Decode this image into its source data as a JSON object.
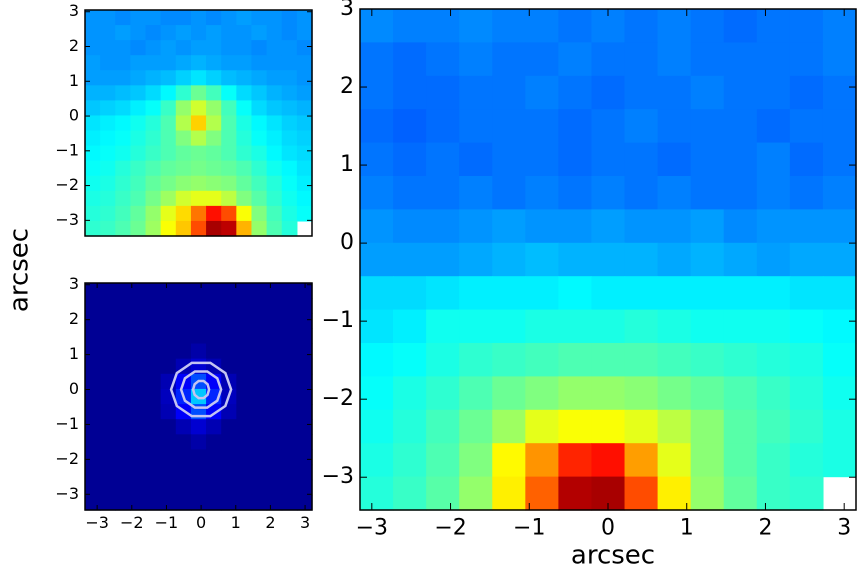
{
  "chart_data": [
    {
      "type": "heatmap",
      "colormap": "jet",
      "ylabel": "arcsec",
      "xlim": [
        -3.35,
        3.2
      ],
      "ylim": [
        -3.45,
        3.05
      ],
      "yticks": [
        {
          "value": -3,
          "label": "−3"
        },
        {
          "value": -2,
          "label": "−2"
        },
        {
          "value": -1,
          "label": "−1"
        },
        0,
        1,
        2,
        3
      ],
      "z": [
        [
          0.27,
          0.27,
          0.26,
          0.27,
          0.27,
          0.26,
          0.26,
          0.27,
          0.26,
          0.27,
          0.28,
          0.27,
          0.27,
          0.26,
          0.27
        ],
        [
          0.27,
          0.27,
          0.28,
          0.27,
          0.26,
          0.27,
          0.28,
          0.27,
          0.28,
          0.27,
          0.27,
          0.28,
          0.27,
          0.26,
          0.27
        ],
        [
          0.27,
          0.27,
          0.27,
          0.26,
          0.27,
          0.28,
          0.27,
          0.28,
          0.28,
          0.27,
          0.27,
          0.26,
          0.27,
          0.27,
          0.26
        ],
        [
          0.28,
          0.27,
          0.27,
          0.28,
          0.28,
          0.28,
          0.29,
          0.3,
          0.29,
          0.28,
          0.28,
          0.27,
          0.27,
          0.27,
          0.27
        ],
        [
          0.28,
          0.28,
          0.28,
          0.29,
          0.3,
          0.31,
          0.33,
          0.35,
          0.33,
          0.31,
          0.3,
          0.29,
          0.28,
          0.28,
          0.27
        ],
        [
          0.3,
          0.3,
          0.31,
          0.32,
          0.34,
          0.37,
          0.42,
          0.48,
          0.44,
          0.38,
          0.34,
          0.32,
          0.3,
          0.29,
          0.28
        ],
        [
          0.32,
          0.33,
          0.34,
          0.36,
          0.38,
          0.43,
          0.52,
          0.58,
          0.52,
          0.44,
          0.38,
          0.34,
          0.32,
          0.31,
          0.3
        ],
        [
          0.35,
          0.36,
          0.37,
          0.39,
          0.41,
          0.45,
          0.55,
          0.67,
          0.55,
          0.45,
          0.4,
          0.37,
          0.35,
          0.33,
          0.32
        ],
        [
          0.36,
          0.37,
          0.38,
          0.4,
          0.42,
          0.45,
          0.5,
          0.55,
          0.5,
          0.45,
          0.41,
          0.38,
          0.36,
          0.34,
          0.33
        ],
        [
          0.37,
          0.38,
          0.39,
          0.41,
          0.43,
          0.45,
          0.47,
          0.48,
          0.47,
          0.45,
          0.42,
          0.4,
          0.37,
          0.35,
          0.34
        ],
        [
          0.38,
          0.39,
          0.41,
          0.43,
          0.45,
          0.47,
          0.48,
          0.49,
          0.48,
          0.47,
          0.45,
          0.42,
          0.39,
          0.37,
          0.35
        ],
        [
          0.39,
          0.4,
          0.42,
          0.44,
          0.47,
          0.49,
          0.51,
          0.52,
          0.51,
          0.5,
          0.47,
          0.44,
          0.41,
          0.38,
          0.36
        ],
        [
          0.4,
          0.41,
          0.43,
          0.45,
          0.49,
          0.53,
          0.58,
          0.6,
          0.6,
          0.56,
          0.5,
          0.46,
          0.42,
          0.39,
          0.37
        ],
        [
          0.41,
          0.42,
          0.44,
          0.47,
          0.52,
          0.6,
          0.66,
          0.76,
          0.86,
          0.8,
          0.62,
          0.5,
          0.44,
          0.4,
          0.38
        ],
        [
          0.42,
          0.43,
          0.45,
          0.48,
          0.53,
          0.62,
          0.68,
          0.8,
          0.96,
          0.94,
          0.7,
          0.52,
          0.45,
          0.41,
          null
        ]
      ]
    },
    {
      "type": "heatmap",
      "colormap": "jet",
      "xlim": [
        -3.35,
        3.2
      ],
      "ylim": [
        -3.45,
        3.05
      ],
      "xticks": [
        {
          "value": -3,
          "label": "−3"
        },
        {
          "value": -2,
          "label": "−2"
        },
        {
          "value": -1,
          "label": "−1"
        },
        0,
        1,
        2,
        3
      ],
      "yticks": [
        {
          "value": -3,
          "label": "−3"
        },
        {
          "value": -2,
          "label": "−2"
        },
        {
          "value": -1,
          "label": "−1"
        },
        0,
        1,
        2,
        3
      ],
      "z": [
        [
          0.02,
          0.02,
          0.02,
          0.02,
          0.02,
          0.02,
          0.02,
          0.02,
          0.02,
          0.02,
          0.02,
          0.02,
          0.02,
          0.02,
          0.02
        ],
        [
          0.02,
          0.02,
          0.02,
          0.02,
          0.02,
          0.02,
          0.02,
          0.02,
          0.02,
          0.02,
          0.02,
          0.02,
          0.02,
          0.02,
          0.02
        ],
        [
          0.02,
          0.02,
          0.02,
          0.02,
          0.02,
          0.02,
          0.02,
          0.02,
          0.02,
          0.02,
          0.02,
          0.02,
          0.02,
          0.02,
          0.02
        ],
        [
          0.02,
          0.02,
          0.02,
          0.02,
          0.02,
          0.02,
          0.02,
          0.02,
          0.02,
          0.02,
          0.02,
          0.02,
          0.02,
          0.02,
          0.02
        ],
        [
          0.02,
          0.02,
          0.02,
          0.02,
          0.02,
          0.02,
          0.02,
          0.04,
          0.02,
          0.02,
          0.02,
          0.02,
          0.02,
          0.02,
          0.02
        ],
        [
          0.02,
          0.02,
          0.02,
          0.02,
          0.02,
          0.02,
          0.05,
          0.08,
          0.05,
          0.02,
          0.02,
          0.02,
          0.02,
          0.02,
          0.02
        ],
        [
          0.02,
          0.02,
          0.02,
          0.02,
          0.02,
          0.05,
          0.12,
          0.2,
          0.12,
          0.05,
          0.02,
          0.02,
          0.02,
          0.02,
          0.02
        ],
        [
          0.02,
          0.02,
          0.02,
          0.02,
          0.02,
          0.06,
          0.16,
          0.32,
          0.16,
          0.06,
          0.02,
          0.02,
          0.02,
          0.02,
          0.02
        ],
        [
          0.02,
          0.02,
          0.02,
          0.02,
          0.02,
          0.05,
          0.12,
          0.2,
          0.12,
          0.05,
          0.02,
          0.02,
          0.02,
          0.02,
          0.02
        ],
        [
          0.02,
          0.02,
          0.02,
          0.02,
          0.02,
          0.02,
          0.05,
          0.08,
          0.05,
          0.02,
          0.02,
          0.02,
          0.02,
          0.02,
          0.02
        ],
        [
          0.02,
          0.02,
          0.02,
          0.02,
          0.02,
          0.02,
          0.02,
          0.04,
          0.02,
          0.02,
          0.02,
          0.02,
          0.02,
          0.02,
          0.02
        ],
        [
          0.02,
          0.02,
          0.02,
          0.02,
          0.02,
          0.02,
          0.02,
          0.02,
          0.02,
          0.02,
          0.02,
          0.02,
          0.02,
          0.02,
          0.02
        ],
        [
          0.02,
          0.02,
          0.02,
          0.02,
          0.02,
          0.02,
          0.02,
          0.02,
          0.02,
          0.02,
          0.02,
          0.02,
          0.02,
          0.02,
          0.02
        ],
        [
          0.02,
          0.02,
          0.02,
          0.02,
          0.02,
          0.02,
          0.02,
          0.02,
          0.02,
          0.02,
          0.02,
          0.02,
          0.02,
          0.02,
          0.02
        ],
        [
          0.02,
          0.02,
          0.02,
          0.02,
          0.02,
          0.02,
          0.02,
          0.02,
          0.02,
          0.02,
          0.02,
          0.02,
          0.02,
          0.02,
          0.02
        ]
      ]
    },
    {
      "type": "heatmap",
      "colormap": "jet",
      "xlabel": "arcsec",
      "xlim": [
        -3.15,
        3.15
      ],
      "ylim": [
        -3.42,
        3.0
      ],
      "xticks": [
        {
          "value": -3,
          "label": "−3"
        },
        {
          "value": -2,
          "label": "−2"
        },
        {
          "value": -1,
          "label": "−1"
        },
        0,
        1,
        2,
        3
      ],
      "yticks": [
        {
          "value": -3,
          "label": "−3"
        },
        {
          "value": -2,
          "label": "−2"
        },
        {
          "value": -1,
          "label": "−1"
        },
        0,
        1,
        2,
        3
      ],
      "z": [
        [
          0.26,
          0.25,
          0.25,
          0.26,
          0.25,
          0.25,
          0.24,
          0.25,
          0.24,
          0.25,
          0.24,
          0.23,
          0.24,
          0.24,
          0.25
        ],
        [
          0.24,
          0.23,
          0.24,
          0.25,
          0.24,
          0.24,
          0.25,
          0.24,
          0.24,
          0.25,
          0.24,
          0.24,
          0.24,
          0.24,
          0.25
        ],
        [
          0.24,
          0.23,
          0.23,
          0.24,
          0.24,
          0.25,
          0.24,
          0.23,
          0.24,
          0.24,
          0.25,
          0.24,
          0.24,
          0.23,
          0.24
        ],
        [
          0.23,
          0.22,
          0.23,
          0.24,
          0.24,
          0.24,
          0.23,
          0.24,
          0.25,
          0.24,
          0.24,
          0.24,
          0.23,
          0.24,
          0.24
        ],
        [
          0.24,
          0.23,
          0.24,
          0.23,
          0.24,
          0.24,
          0.23,
          0.24,
          0.24,
          0.23,
          0.24,
          0.24,
          0.25,
          0.23,
          0.24
        ],
        [
          0.25,
          0.24,
          0.24,
          0.25,
          0.24,
          0.25,
          0.24,
          0.25,
          0.24,
          0.25,
          0.24,
          0.24,
          0.25,
          0.24,
          0.25
        ],
        [
          0.27,
          0.26,
          0.26,
          0.27,
          0.28,
          0.27,
          0.27,
          0.28,
          0.27,
          0.27,
          0.28,
          0.26,
          0.27,
          0.27,
          0.27
        ],
        [
          0.28,
          0.28,
          0.28,
          0.29,
          0.3,
          0.31,
          0.3,
          0.3,
          0.3,
          0.29,
          0.3,
          0.29,
          0.28,
          0.29,
          0.29
        ],
        [
          0.34,
          0.34,
          0.35,
          0.36,
          0.36,
          0.36,
          0.37,
          0.36,
          0.36,
          0.36,
          0.36,
          0.36,
          0.36,
          0.35,
          0.35
        ],
        [
          0.35,
          0.36,
          0.39,
          0.39,
          0.39,
          0.4,
          0.4,
          0.4,
          0.41,
          0.4,
          0.39,
          0.39,
          0.39,
          0.38,
          0.37
        ],
        [
          0.37,
          0.38,
          0.4,
          0.42,
          0.43,
          0.44,
          0.45,
          0.45,
          0.45,
          0.44,
          0.43,
          0.42,
          0.41,
          0.4,
          0.38
        ],
        [
          0.38,
          0.4,
          0.42,
          0.45,
          0.48,
          0.5,
          0.52,
          0.52,
          0.51,
          0.49,
          0.47,
          0.45,
          0.43,
          0.41,
          0.39
        ],
        [
          0.39,
          0.41,
          0.44,
          0.48,
          0.53,
          0.6,
          0.62,
          0.62,
          0.6,
          0.56,
          0.51,
          0.46,
          0.44,
          0.42,
          0.4
        ],
        [
          0.4,
          0.42,
          0.45,
          0.5,
          0.63,
          0.73,
          0.84,
          0.86,
          0.72,
          0.6,
          0.51,
          0.46,
          0.43,
          0.41,
          0.4
        ],
        [
          0.41,
          0.43,
          0.46,
          0.52,
          0.64,
          0.78,
          0.95,
          0.96,
          0.8,
          0.64,
          0.52,
          0.47,
          0.43,
          0.42,
          null
        ]
      ]
    }
  ]
}
